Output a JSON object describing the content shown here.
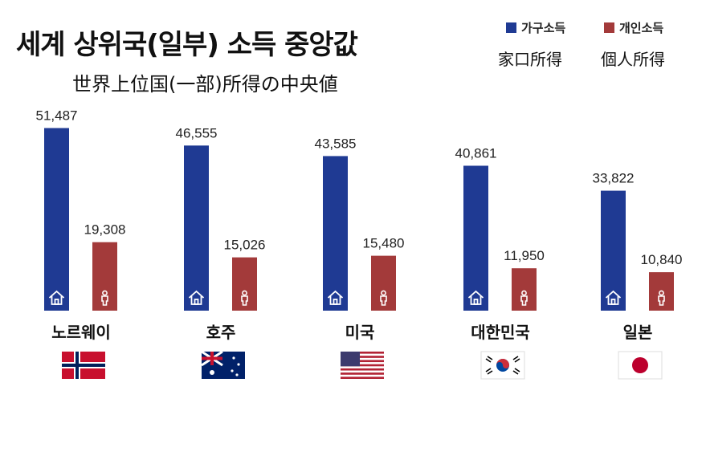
{
  "title": "세계 상위국(일부) 소득 중앙값",
  "subtitle": "世界上位国(一部)所得の中央値",
  "legend": {
    "household": {
      "label": "가구소득",
      "label_ja": "家口所得",
      "color": "#1f3a93"
    },
    "individual": {
      "label": "개인소득",
      "label_ja": "個人所得",
      "color": "#a33a3a"
    }
  },
  "chart_data": {
    "type": "bar",
    "categories": [
      "노르웨이",
      "호주",
      "미국",
      "대한민국",
      "일본"
    ],
    "series": [
      {
        "name": "가구소득",
        "values": [
          51487,
          46555,
          43585,
          40861,
          33822
        ],
        "labels": [
          "51,487",
          "46,555",
          "43,585",
          "40,861",
          "33,822"
        ],
        "icon": "house-icon"
      },
      {
        "name": "개인소득",
        "values": [
          19308,
          15026,
          15480,
          11950,
          10840
        ],
        "labels": [
          "19,308",
          "15,026",
          "15,480",
          "11,950",
          "10,840"
        ],
        "icon": "person-icon"
      }
    ],
    "flags": [
      "norway-flag",
      "australia-flag",
      "usa-flag",
      "korea-flag",
      "japan-flag"
    ],
    "ylim": [
      0,
      55000
    ],
    "grid": false,
    "legend_position": "top-right"
  }
}
